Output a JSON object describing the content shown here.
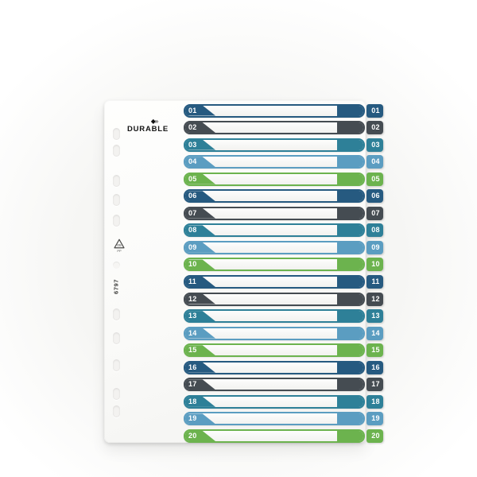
{
  "photo": {
    "brand_logo": "DURABLE",
    "brand_icon": "◆»",
    "product_code": "6797",
    "recycle_symbol": {
      "code": "05",
      "material": "PP"
    }
  },
  "palette": {
    "navy": "#265a80",
    "dark_gray": "#454c52",
    "teal": "#2e8098",
    "light_blue": "#5b9dc1",
    "green": "#6cb34e"
  },
  "index_tabs": [
    {
      "number": "01",
      "color": "#265a80"
    },
    {
      "number": "02",
      "color": "#454c52"
    },
    {
      "number": "03",
      "color": "#2e8098"
    },
    {
      "number": "04",
      "color": "#5b9dc1"
    },
    {
      "number": "05",
      "color": "#6cb34e"
    },
    {
      "number": "06",
      "color": "#265a80"
    },
    {
      "number": "07",
      "color": "#454c52"
    },
    {
      "number": "08",
      "color": "#2e8098"
    },
    {
      "number": "09",
      "color": "#5b9dc1"
    },
    {
      "number": "10",
      "color": "#6cb34e"
    },
    {
      "number": "11",
      "color": "#265a80"
    },
    {
      "number": "12",
      "color": "#454c52"
    },
    {
      "number": "13",
      "color": "#2e8098"
    },
    {
      "number": "14",
      "color": "#5b9dc1"
    },
    {
      "number": "15",
      "color": "#6cb34e"
    },
    {
      "number": "16",
      "color": "#265a80"
    },
    {
      "number": "17",
      "color": "#454c52"
    },
    {
      "number": "18",
      "color": "#2e8098"
    },
    {
      "number": "19",
      "color": "#5b9dc1"
    },
    {
      "number": "20",
      "color": "#6cb34e"
    }
  ]
}
